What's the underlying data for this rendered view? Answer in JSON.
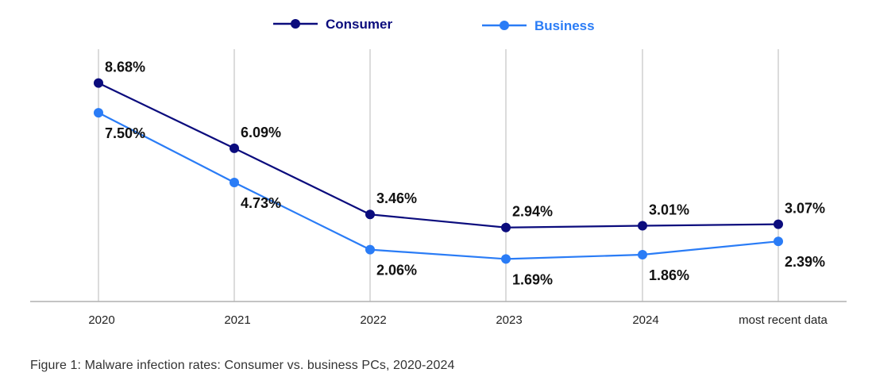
{
  "chart_data": {
    "type": "line",
    "title": "",
    "caption": "Figure 1: Malware infection rates: Consumer vs. business PCs, 2020-2024",
    "xlabel": "",
    "ylabel": "",
    "categories": [
      "2020",
      "2021",
      "2022",
      "2023",
      "2024",
      "most recent data"
    ],
    "ylim": [
      0,
      9.5
    ],
    "grid": "vertical",
    "legend_position": "top-center",
    "series": [
      {
        "name": "Consumer",
        "color": "#0b0c7d",
        "values": [
          8.68,
          6.09,
          3.46,
          2.94,
          3.01,
          3.07
        ],
        "labels": [
          "8.68%",
          "6.09%",
          "3.46%",
          "2.94%",
          "3.01%",
          "3.07%"
        ],
        "label_position": "above"
      },
      {
        "name": "Business",
        "color": "#2a7cf6",
        "values": [
          7.5,
          4.73,
          2.06,
          1.69,
          1.86,
          2.39
        ],
        "labels": [
          "7.50%",
          "4.73%",
          "2.06%",
          "1.69%",
          "1.86%",
          "2.39%"
        ],
        "label_position": "below"
      }
    ]
  },
  "colors": {
    "grid": "#c8c8c8",
    "axis": "#b0b0b0",
    "text": "#111111"
  }
}
